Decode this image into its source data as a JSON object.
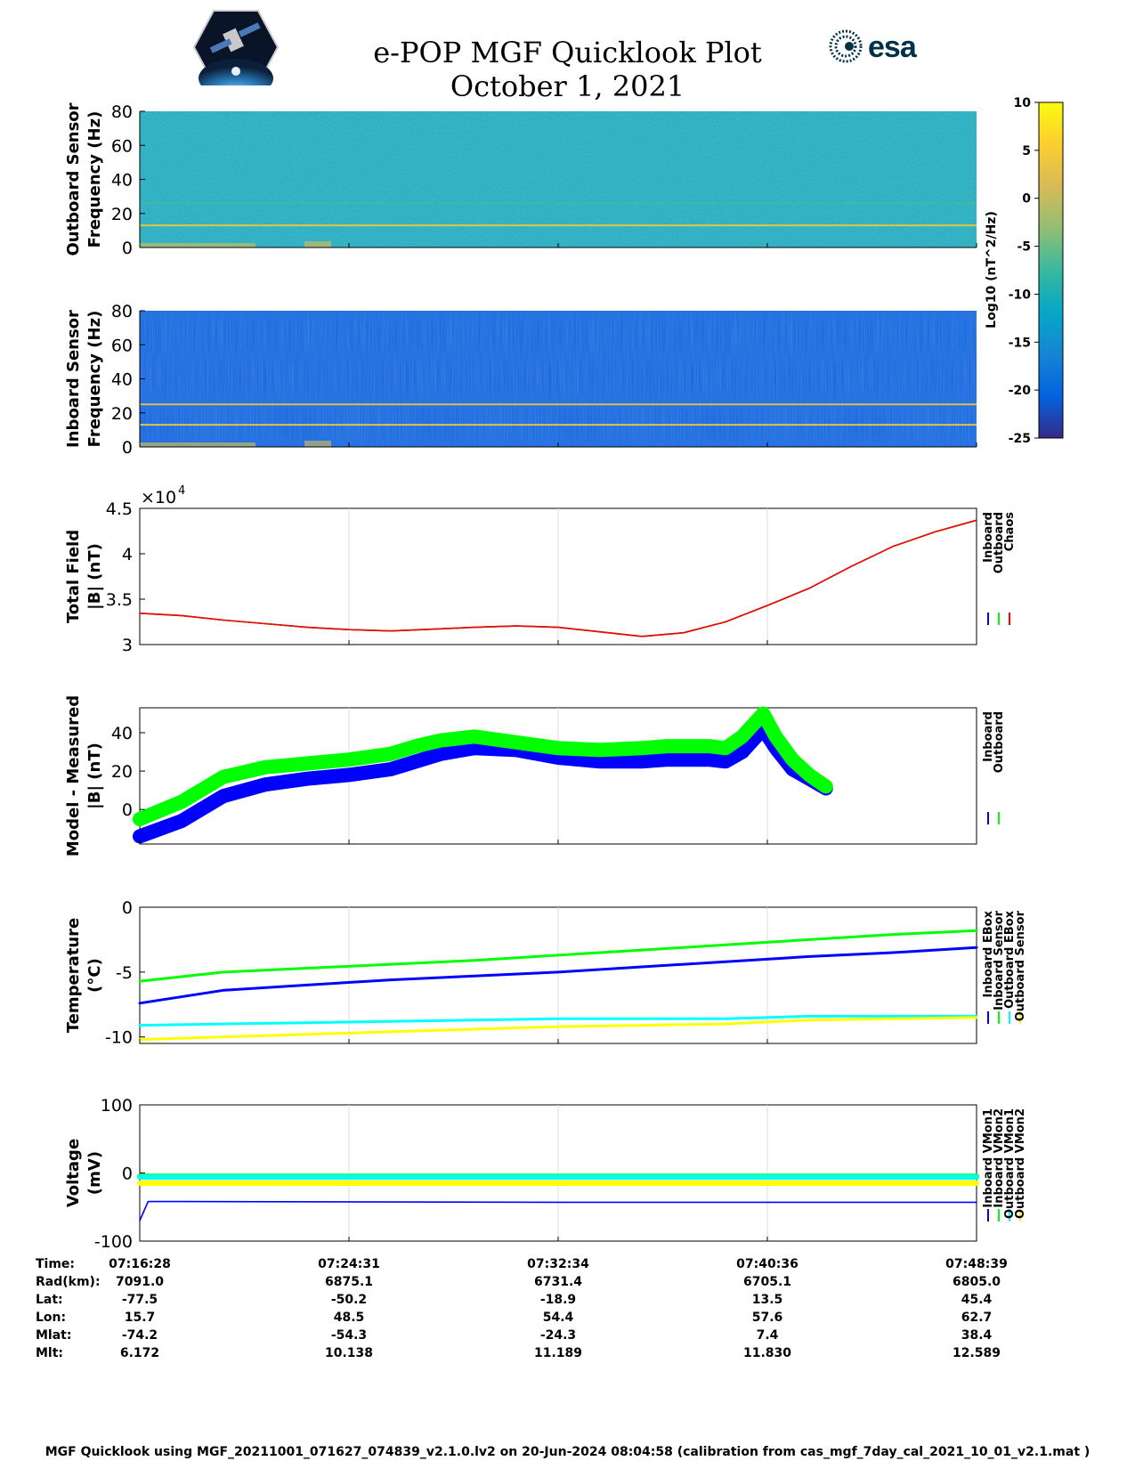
{
  "header": {
    "title_line1": "e-POP MGF Quicklook Plot",
    "title_line2": "October 1, 2021",
    "left_logo": "cassiope-mission-logo",
    "right_logo_text": "esa"
  },
  "footer": {
    "text": "MGF Quicklook using MGF_20211001_071627_074839_v2.1.0.lv2 on 20-Jun-2024 08:04:58 (calibration from cas_mgf_7day_cal_2021_10_01_v2.1.mat )"
  },
  "colorbar": {
    "label": "Log10 (nT^2/Hz)",
    "ticks": [
      10,
      5,
      0,
      -5,
      -10,
      -15,
      -20,
      -25
    ],
    "range": [
      -25,
      10
    ],
    "colormap": "parula"
  },
  "chart_data": [
    {
      "type": "heatmap",
      "ylabel": [
        "Outboard Sensor",
        "Frequency (Hz)"
      ],
      "ylim": [
        0,
        80
      ],
      "yticks": [
        0,
        20,
        40,
        60,
        80
      ],
      "background_log10": -10.5,
      "lines": [
        {
          "freq": 13,
          "log10": 3
        },
        {
          "freq": 26,
          "log10": -7
        }
      ]
    },
    {
      "type": "heatmap",
      "ylabel": [
        "Inboard Sensor",
        "Frequency (Hz)"
      ],
      "ylim": [
        0,
        80
      ],
      "yticks": [
        0,
        20,
        40,
        60,
        80
      ],
      "background_log10": -21,
      "lines": [
        {
          "freq": 13,
          "log10": 3
        },
        {
          "freq": 25,
          "log10": 2
        }
      ]
    },
    {
      "type": "line",
      "ylabel": [
        "Total Field",
        "|B| (nT)"
      ],
      "ylim": [
        30000,
        45000
      ],
      "yticks": [
        3,
        3.5,
        4,
        4.5
      ],
      "exponent_label": "×10",
      "exponent_power": "4",
      "x_frac": [
        0,
        0.05,
        0.1,
        0.15,
        0.2,
        0.25,
        0.3,
        0.35,
        0.4,
        0.45,
        0.5,
        0.55,
        0.6,
        0.65,
        0.7,
        0.75,
        0.8,
        0.85,
        0.9,
        0.95,
        1.0
      ],
      "series": [
        {
          "name": "Inboard",
          "color": "#0000ff",
          "values": [
            33450,
            33200,
            32700,
            32300,
            31900,
            31650,
            31500,
            31700,
            31900,
            32050,
            31900,
            31400,
            30900,
            31300,
            32500,
            34300,
            36200,
            38600,
            40800,
            42400,
            43700
          ]
        },
        {
          "name": "Outboard",
          "color": "#00ff00",
          "values": [
            33450,
            33200,
            32700,
            32300,
            31900,
            31650,
            31500,
            31700,
            31900,
            32050,
            31900,
            31400,
            30900,
            31300,
            32500,
            34300,
            36200,
            38600,
            40800,
            42400,
            43700
          ]
        },
        {
          "name": "Chaos",
          "color": "#ff0000",
          "values": [
            33450,
            33200,
            32700,
            32300,
            31900,
            31650,
            31500,
            31700,
            31900,
            32050,
            31900,
            31400,
            30900,
            31300,
            32500,
            34300,
            36200,
            38600,
            40800,
            42400,
            43700
          ]
        }
      ]
    },
    {
      "type": "line",
      "ylabel": [
        "Model - Measured",
        "|B| (nT)"
      ],
      "ylim": [
        -18,
        53
      ],
      "yticks": [
        0,
        20,
        40
      ],
      "x_frac": [
        0,
        0.05,
        0.1,
        0.15,
        0.2,
        0.25,
        0.3,
        0.33,
        0.36,
        0.4,
        0.45,
        0.5,
        0.55,
        0.6,
        0.63,
        0.66,
        0.68,
        0.7,
        0.72,
        0.745,
        0.76,
        0.78,
        0.8,
        0.82
      ],
      "series": [
        {
          "name": "Inboard",
          "color": "#0000ff",
          "values": [
            -14,
            -6,
            7,
            13,
            16,
            18,
            21,
            25,
            29,
            32,
            31,
            27,
            25,
            25,
            26,
            26,
            26,
            25,
            30,
            42,
            32,
            21,
            16,
            11
          ]
        },
        {
          "name": "Outboard",
          "color": "#00ff00",
          "values": [
            -5,
            4,
            17,
            22,
            24,
            26,
            29,
            33,
            36,
            38,
            35,
            32,
            31,
            32,
            33,
            33,
            33,
            32,
            38,
            50,
            38,
            26,
            18,
            12
          ]
        }
      ]
    },
    {
      "type": "line",
      "ylabel": [
        "Temperature",
        "(°C)"
      ],
      "ylim": [
        -10.5,
        0
      ],
      "yticks": [
        -10,
        -5,
        0
      ],
      "x_frac": [
        0,
        0.1,
        0.2,
        0.3,
        0.4,
        0.5,
        0.6,
        0.7,
        0.8,
        0.9,
        1.0
      ],
      "series": [
        {
          "name": "Inboard EBox",
          "color": "#0000ff",
          "values": [
            -7.4,
            -6.4,
            -6.0,
            -5.6,
            -5.3,
            -5.0,
            -4.6,
            -4.2,
            -3.8,
            -3.5,
            -3.1
          ]
        },
        {
          "name": "Inboard Sensor",
          "color": "#00ff00",
          "values": [
            -5.7,
            -5.0,
            -4.7,
            -4.4,
            -4.1,
            -3.7,
            -3.3,
            -2.9,
            -2.5,
            -2.1,
            -1.8
          ]
        },
        {
          "name": "Outboard EBox",
          "color": "#00ffff",
          "values": [
            -9.1,
            -9.0,
            -8.9,
            -8.8,
            -8.7,
            -8.6,
            -8.6,
            -8.6,
            -8.4,
            -8.4,
            -8.4
          ]
        },
        {
          "name": "Outboard Sensor",
          "color": "#ffff00",
          "values": [
            -10.2,
            -10.0,
            -9.8,
            -9.6,
            -9.4,
            -9.2,
            -9.1,
            -9.0,
            -8.7,
            -8.6,
            -8.5
          ]
        }
      ]
    },
    {
      "type": "line",
      "ylabel": [
        "Voltage",
        "(mV)"
      ],
      "ylim": [
        -100,
        100
      ],
      "yticks": [
        -100,
        0,
        100
      ],
      "x_frac": [
        0,
        0.01,
        0.05,
        0.5,
        1.0
      ],
      "series": [
        {
          "name": "Inboard VMon1",
          "color": "#0000ff",
          "values": [
            -70,
            -42,
            -42,
            -43,
            -43
          ]
        },
        {
          "name": "Inboard VMon2",
          "color": "#00ff00",
          "values": [
            -5,
            -5,
            -5,
            -5,
            -5
          ]
        },
        {
          "name": "Outboard VMon1",
          "color": "#00ffff",
          "values": [
            -6,
            -6,
            -6,
            -6,
            -6
          ]
        },
        {
          "name": "Outboard VMon2",
          "color": "#ffff00",
          "values": [
            -15,
            -15,
            -15,
            -15,
            -15
          ]
        }
      ]
    }
  ],
  "ephemeris": {
    "labels": [
      "Time:",
      "Rad(km):",
      "Lat:",
      "Lon:",
      "Mlat:",
      "Mlt:"
    ],
    "columns": [
      [
        "07:16:28",
        "7091.0",
        "-77.5",
        "15.7",
        "-74.2",
        "6.172"
      ],
      [
        "07:24:31",
        "6875.1",
        "-50.2",
        "48.5",
        "-54.3",
        "10.138"
      ],
      [
        "07:32:34",
        "6731.4",
        "-18.9",
        "54.4",
        "-24.3",
        "11.189"
      ],
      [
        "07:40:36",
        "6705.1",
        "13.5",
        "57.6",
        "7.4",
        "11.830"
      ],
      [
        "07:48:39",
        "6805.0",
        "45.4",
        "62.7",
        "38.4",
        "12.589"
      ]
    ]
  }
}
